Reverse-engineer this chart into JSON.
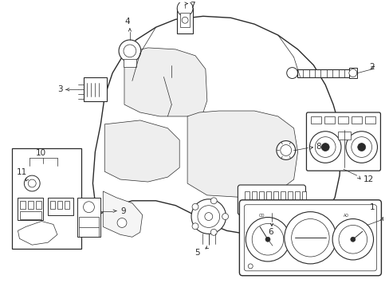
{
  "bg_color": "#ffffff",
  "line_color": "#2a2a2a",
  "fig_width": 4.89,
  "fig_height": 3.6,
  "dpi": 100,
  "lw_main": 0.8,
  "lw_thin": 0.5,
  "font_size": 7.5
}
